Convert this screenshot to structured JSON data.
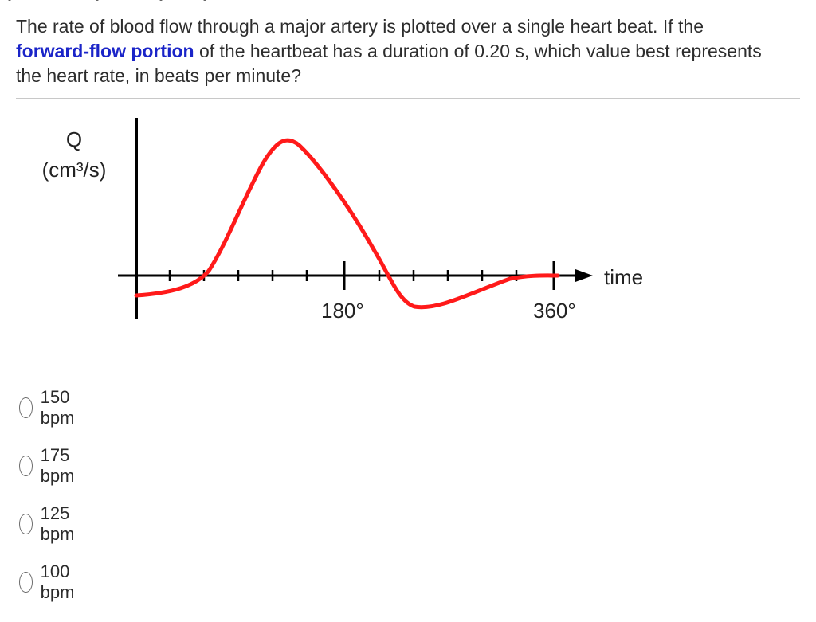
{
  "question": {
    "text_before": "The rate of blood flow through a major artery is plotted over a single heart beat.  If the ",
    "highlight": "forward-flow portion",
    "text_after": " of the heartbeat has a duration of 0.20 s, which value best represents the heart rate, in beats per minute?"
  },
  "figure": {
    "y_label_line1": "Q",
    "y_label_line2": "(cm³/s)",
    "x_label": "time",
    "tick_label_mid": "180°",
    "tick_label_end": "360°",
    "curve_color": "#ff1a1a",
    "axis_color": "#000000"
  },
  "choices": [
    {
      "label": "150 bpm"
    },
    {
      "label": "175 bpm"
    },
    {
      "label": "125 bpm"
    },
    {
      "label": "100 bpm"
    }
  ],
  "colors": {
    "highlight": "#1a24c8",
    "text": "#2d2d2d"
  }
}
